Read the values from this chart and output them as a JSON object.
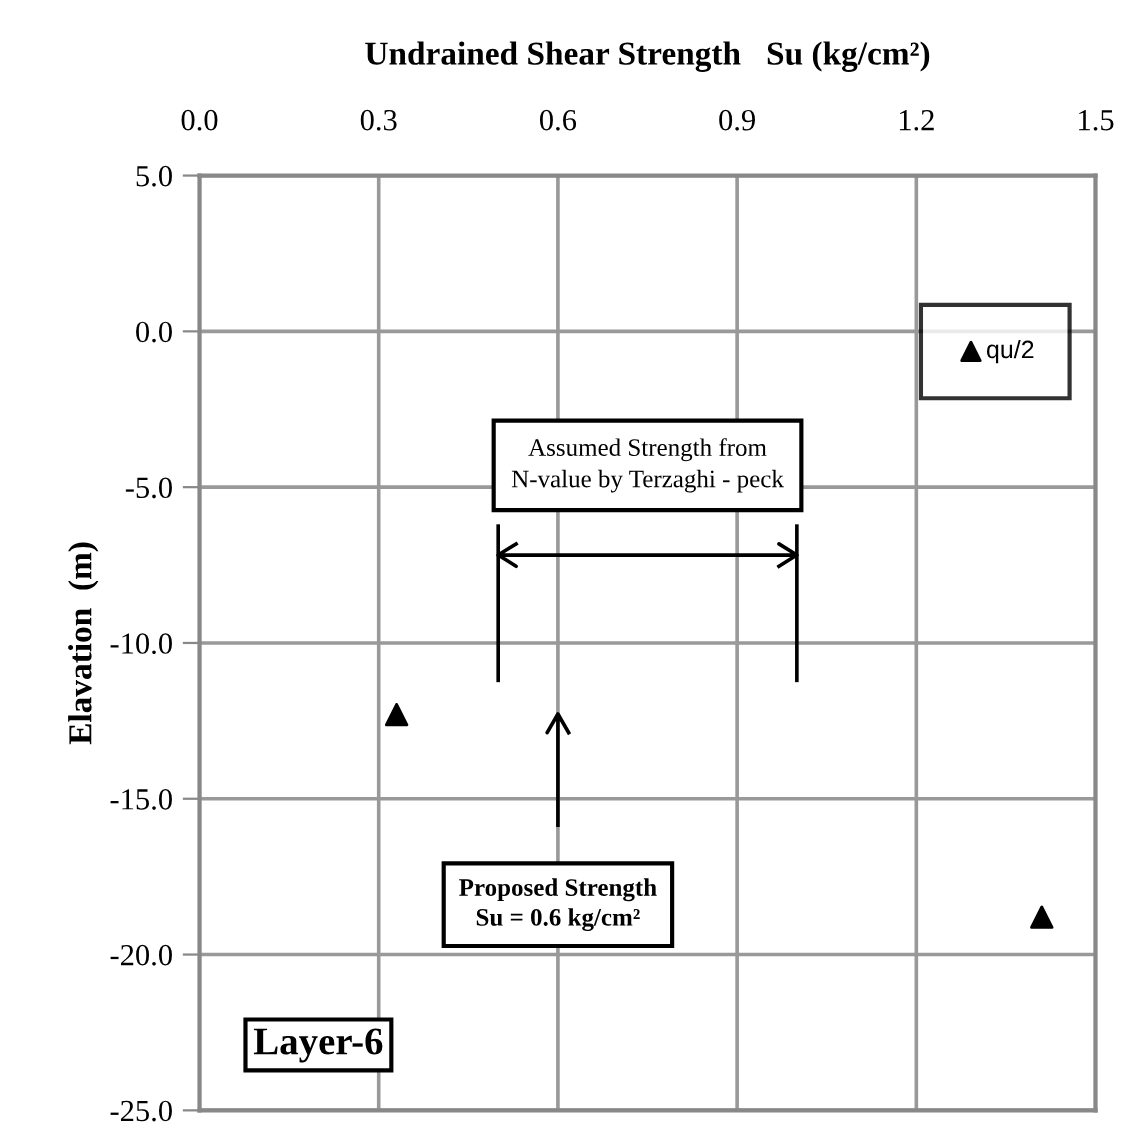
{
  "chart_data": {
    "type": "scatter",
    "xlabel": "Undrained Shear Strength   Su (kg/cm²)",
    "ylabel": "Elavation  (m)",
    "series": [
      {
        "name": "qu/2",
        "color": "#000000",
        "x": [
          0.33,
          1.41
        ],
        "values": [
          -12.3,
          -18.8
        ]
      }
    ],
    "marker": "triangle",
    "xlim": [
      0,
      1.5
    ],
    "xticks": [
      {
        "value": 0,
        "label": "0.0"
      },
      0.3,
      0.6,
      0.9,
      1.2,
      1.5
    ],
    "ylim": [
      -25,
      5
    ],
    "yticks": [
      {
        "value": -25,
        "label": "-25.0"
      },
      {
        "value": -20,
        "label": "-20.0"
      },
      {
        "value": -15,
        "label": "-15.0"
      },
      {
        "value": -10,
        "label": "-10.0"
      },
      {
        "value": -5,
        "label": "-5.0"
      },
      {
        "value": 0,
        "label": "0.0"
      },
      {
        "value": 5,
        "label": "5.0"
      }
    ],
    "grid": true,
    "legend": "top right",
    "annotations": [
      "Assumed Strength from\nN-value by Terzaghi - peck",
      "Proposed Strength\nSu = 0.6 kg/cm²",
      "Layer-6"
    ]
  }
}
